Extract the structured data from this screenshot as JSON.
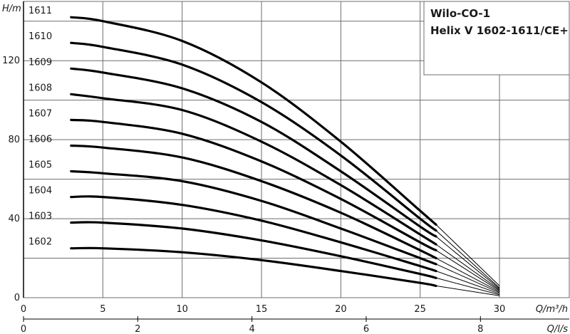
{
  "chart_data": {
    "type": "line",
    "title_lines": [
      "Wilo-CO-1",
      "Helix V 1602-1611/CE+"
    ],
    "xlabel": "Q/m³/h",
    "ylabel": "H/m",
    "x2label": "Q/l/s",
    "xlim": [
      0,
      34.4
    ],
    "ylim": [
      0,
      150
    ],
    "x_ticks": [
      0,
      5,
      10,
      15,
      20,
      25,
      30
    ],
    "y_ticks": [
      0,
      40,
      80,
      120
    ],
    "x2_ticks": [
      0,
      2,
      4,
      6,
      8
    ],
    "grid": true,
    "colors": {
      "line": "#000000",
      "grid": "#6e6e6e",
      "axis": "#000000"
    },
    "series": [
      {
        "name": "1602",
        "x": [
          3,
          5,
          10,
          15,
          20,
          25,
          26,
          30
        ],
        "y": [
          25,
          25,
          23,
          19,
          13.5,
          7.5,
          6,
          1
        ]
      },
      {
        "name": "1603",
        "x": [
          3,
          5,
          10,
          15,
          20,
          25,
          26,
          30
        ],
        "y": [
          38,
          38,
          35,
          29,
          21,
          12,
          10,
          1.5
        ]
      },
      {
        "name": "1604",
        "x": [
          3,
          5,
          10,
          15,
          20,
          25,
          26,
          30
        ],
        "y": [
          51,
          51,
          47,
          39,
          28,
          16,
          13.5,
          2
        ]
      },
      {
        "name": "1605",
        "x": [
          3,
          5,
          10,
          15,
          20,
          25,
          26,
          30
        ],
        "y": [
          64,
          63,
          59,
          49,
          35,
          20,
          17,
          2.5
        ]
      },
      {
        "name": "1606",
        "x": [
          3,
          5,
          10,
          15,
          20,
          25,
          26,
          30
        ],
        "y": [
          77,
          76,
          71,
          59,
          43,
          24,
          20,
          3
        ]
      },
      {
        "name": "1607",
        "x": [
          3,
          5,
          10,
          15,
          20,
          25,
          26,
          30
        ],
        "y": [
          90,
          89,
          83,
          69,
          50,
          28,
          24,
          3.5
        ]
      },
      {
        "name": "1608",
        "x": [
          3,
          5,
          10,
          15,
          20,
          25,
          26,
          30
        ],
        "y": [
          103,
          101,
          95,
          79,
          57,
          32,
          27,
          4
        ]
      },
      {
        "name": "1609",
        "x": [
          3,
          5,
          10,
          15,
          20,
          25,
          26,
          30
        ],
        "y": [
          116,
          114,
          106,
          89,
          64,
          36,
          31,
          4.5
        ]
      },
      {
        "name": "1610",
        "x": [
          3,
          5,
          10,
          15,
          20,
          25,
          26,
          30
        ],
        "y": [
          129,
          127,
          118,
          99,
          72,
          40,
          34,
          5
        ]
      },
      {
        "name": "1611",
        "x": [
          3,
          5,
          10,
          15,
          20,
          25,
          26,
          30
        ],
        "y": [
          142,
          140,
          130,
          109,
          79,
          44,
          37,
          6
        ]
      }
    ]
  }
}
